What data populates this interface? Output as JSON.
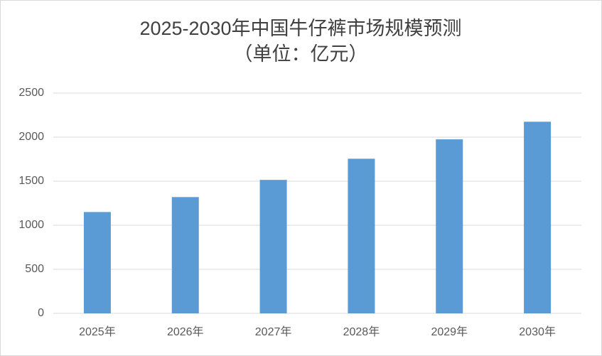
{
  "chart_data": {
    "type": "bar",
    "title": "2025-2030年中国牛仔裤市场规模预测",
    "subtitle": "（单位：亿元）",
    "categories": [
      "2025年",
      "2026年",
      "2027年",
      "2028年",
      "2029年",
      "2030年"
    ],
    "values": [
      1150,
      1320,
      1515,
      1755,
      1975,
      2175
    ],
    "color": "#5b9bd5",
    "ylim": [
      0,
      2500
    ],
    "yticks": [
      0,
      500,
      1000,
      1500,
      2000,
      2500
    ],
    "grid": true
  }
}
